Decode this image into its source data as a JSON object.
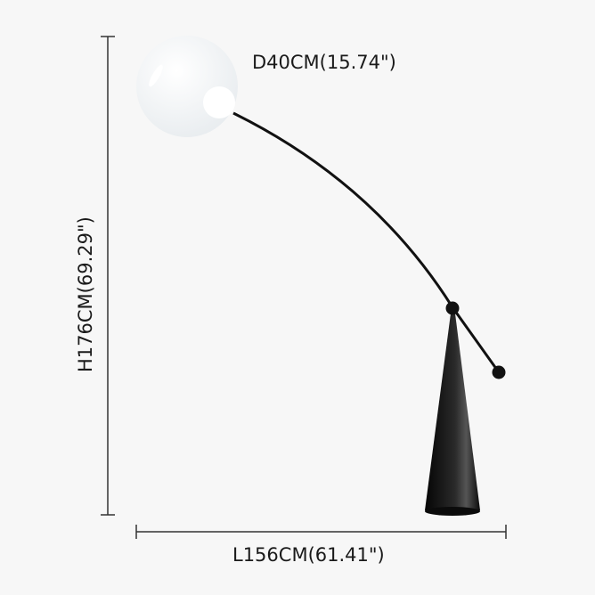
{
  "dimensions": {
    "diameter": "D40CM(15.74\")",
    "height": "H176CM(69.29\")",
    "length": "L156CM(61.41\")"
  },
  "colors": {
    "background": "#f7f7f7",
    "lamp_body": "#111111",
    "globe": "#eef1f3"
  }
}
